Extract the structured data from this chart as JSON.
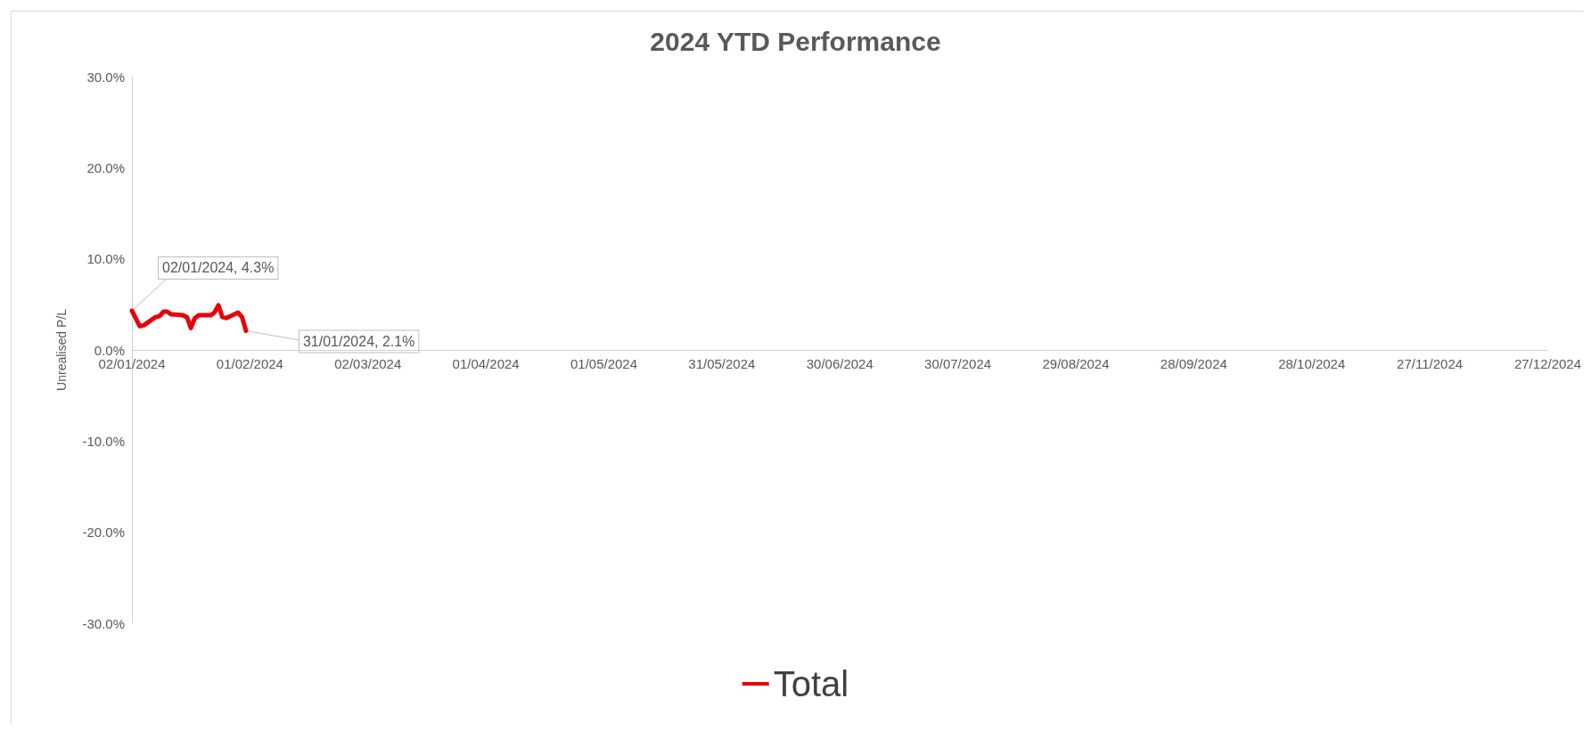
{
  "chart_data": {
    "type": "line",
    "title": "2024 YTD Performance",
    "ylabel": "Unrealised P/L",
    "series": [
      {
        "name": "Total",
        "color": "#e8000b",
        "x": [
          "2024-01-02",
          "2024-01-04",
          "2024-01-05",
          "2024-01-08",
          "2024-01-09",
          "2024-01-10",
          "2024-01-11",
          "2024-01-12",
          "2024-01-15",
          "2024-01-16",
          "2024-01-17",
          "2024-01-18",
          "2024-01-19",
          "2024-01-22",
          "2024-01-23",
          "2024-01-24",
          "2024-01-25",
          "2024-01-26",
          "2024-01-29",
          "2024-01-30",
          "2024-01-31"
        ],
        "values": [
          4.3,
          2.6,
          2.7,
          3.6,
          3.7,
          4.2,
          4.2,
          3.9,
          3.8,
          3.6,
          2.4,
          3.5,
          3.8,
          3.8,
          4.1,
          4.9,
          3.6,
          3.5,
          4.1,
          3.6,
          2.1
        ]
      }
    ],
    "xlim": [
      "2024-01-02",
      "2024-12-27"
    ],
    "xticks": [
      {
        "value": "2024-01-02",
        "label": "02/01/2024"
      },
      {
        "value": "2024-02-01",
        "label": "01/02/2024"
      },
      {
        "value": "2024-03-02",
        "label": "02/03/2024"
      },
      {
        "value": "2024-04-01",
        "label": "01/04/2024"
      },
      {
        "value": "2024-05-01",
        "label": "01/05/2024"
      },
      {
        "value": "2024-05-31",
        "label": "31/05/2024"
      },
      {
        "value": "2024-06-30",
        "label": "30/06/2024"
      },
      {
        "value": "2024-07-30",
        "label": "30/07/2024"
      },
      {
        "value": "2024-08-29",
        "label": "29/08/2024"
      },
      {
        "value": "2024-09-28",
        "label": "28/09/2024"
      },
      {
        "value": "2024-10-28",
        "label": "28/10/2024"
      },
      {
        "value": "2024-11-27",
        "label": "27/11/2024"
      },
      {
        "value": "2024-12-27",
        "label": "27/12/2024"
      }
    ],
    "ylim": [
      -30,
      30
    ],
    "yticks": [
      {
        "value": -30,
        "label": "-30.0%"
      },
      {
        "value": -20,
        "label": "-20.0%"
      },
      {
        "value": -10,
        "label": "-10.0%"
      },
      {
        "value": 0,
        "label": "0.0%"
      },
      {
        "value": 10,
        "label": "10.0%"
      },
      {
        "value": 20,
        "label": "20.0%"
      },
      {
        "value": 30,
        "label": "30.0%"
      }
    ],
    "annotations": [
      {
        "text": "02/01/2024, 4.3%",
        "x": "2024-01-02",
        "y": 4.3
      },
      {
        "text": "31/01/2024, 2.1%",
        "x": "2024-01-31",
        "y": 2.1
      }
    ],
    "grid": false,
    "legend": "bottom",
    "marker": "none",
    "line_style": "solid"
  }
}
